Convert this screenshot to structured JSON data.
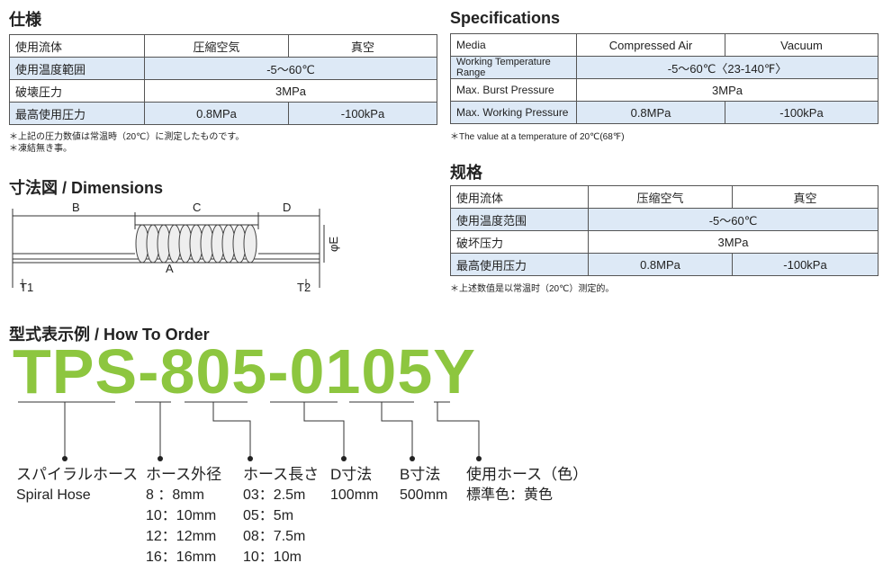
{
  "jp_spec": {
    "title": "仕様",
    "rows": [
      [
        "使用流体",
        "圧縮空気",
        "真空"
      ],
      [
        "使用温度範囲",
        "-5～60℃"
      ],
      [
        "破壊圧力",
        "3MPa"
      ],
      [
        "最高使用圧力",
        "0.8MPa",
        "-100kPa"
      ]
    ],
    "notes": [
      "＊上記の圧力数値は常温時（20℃）に測定したものです。",
      "＊凍結無き事。"
    ]
  },
  "en_spec": {
    "title": "Specifications",
    "rows": [
      [
        "Media",
        "Compressed Air",
        "Vacuum"
      ],
      [
        "Working Temperature Range",
        "-5～60℃〈23-140℉〉"
      ],
      [
        "Max. Burst Pressure",
        "3MPa"
      ],
      [
        "Max. Working Pressure",
        "0.8MPa",
        "-100kPa"
      ]
    ],
    "notes": [
      "＊The value at a temperature of 20℃(68℉)"
    ]
  },
  "cn_spec": {
    "title": "规格",
    "rows": [
      [
        "使用流体",
        "压缩空气",
        "真空"
      ],
      [
        "使用温度范围",
        "-5～60℃"
      ],
      [
        "破坏压力",
        "3MPa"
      ],
      [
        "最高使用压力",
        "0.8MPa",
        "-100kPa"
      ]
    ],
    "notes": [
      "＊上述数值是以常温时（20℃）测定的。"
    ]
  },
  "dimensions": {
    "title": "寸法図 / Dimensions",
    "labels": {
      "b": "B",
      "c": "C",
      "d": "D",
      "a": "A",
      "t1": "T1",
      "t2": "T2",
      "e": "φE"
    }
  },
  "how_to_order": {
    "title": "型式表示例 / How To Order",
    "code": "TPS-805-0105Y",
    "columns": [
      {
        "heading": "スパイラルホース",
        "lines": [
          "Spiral Hose"
        ]
      },
      {
        "heading": "ホース外径",
        "lines": [
          "8 ：8mm",
          "10：10mm",
          "12：12mm",
          "16：16mm"
        ]
      },
      {
        "heading": "ホース長さ",
        "lines": [
          "03：2.5m",
          "05：5m",
          "08：7.5m",
          "10：10m"
        ]
      },
      {
        "heading": "D寸法",
        "lines": [
          "100mm"
        ]
      },
      {
        "heading": "B寸法",
        "lines": [
          "500mm"
        ]
      },
      {
        "heading": "使用ホース（色）",
        "lines": [
          "標準色：黄色"
        ]
      }
    ]
  }
}
